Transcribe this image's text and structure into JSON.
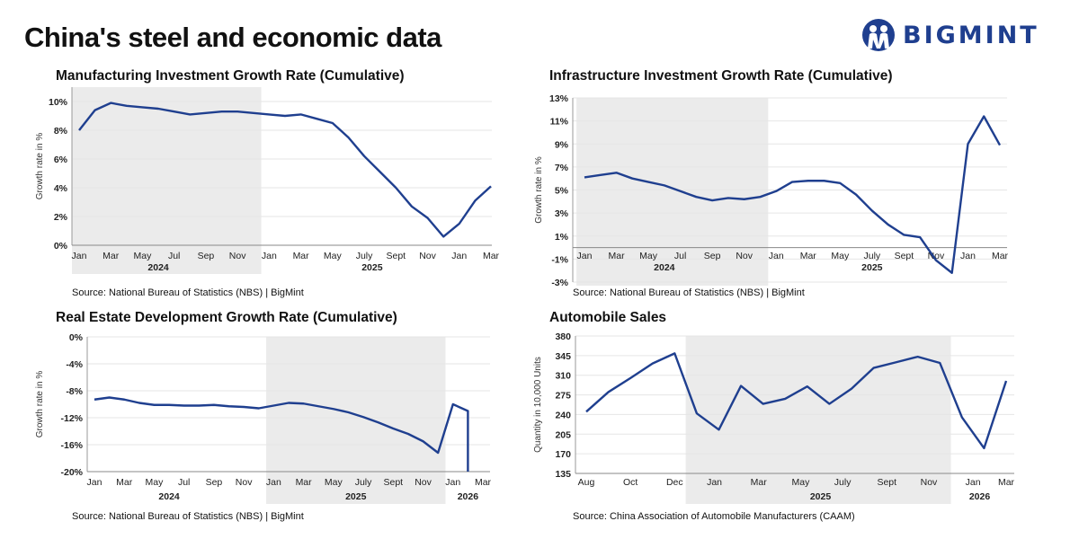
{
  "title": "China's steel and economic data",
  "logo": {
    "text": "BIGMINT",
    "color": "#1f3f8f"
  },
  "colors": {
    "line": "#1f3f8f",
    "shade": "#ebebeb",
    "grid": "#e6e6e6"
  },
  "chart_data": [
    {
      "type": "line",
      "title": "Manufacturing Investment Growth Rate (Cumulative)",
      "ylabel": "Growth rate in %",
      "source": "Source: National Bureau of Statistics (NBS) | BigMint",
      "ylim": [
        0,
        11
      ],
      "yticks": [
        "0%",
        "2%",
        "4%",
        "6%",
        "8%",
        "10%"
      ],
      "ytick_values": [
        0,
        2,
        4,
        6,
        8,
        10
      ],
      "xtick_labels": [
        {
          "i": 0,
          "t": "Jan"
        },
        {
          "i": 2,
          "t": "Mar"
        },
        {
          "i": 4,
          "t": "May"
        },
        {
          "i": 6,
          "t": "Jul"
        },
        {
          "i": 8,
          "t": "Sep"
        },
        {
          "i": 10,
          "t": "Nov"
        },
        {
          "i": 12,
          "t": "Jan"
        },
        {
          "i": 14,
          "t": "Mar"
        },
        {
          "i": 16,
          "t": "May"
        },
        {
          "i": 18,
          "t": "July"
        },
        {
          "i": 20,
          "t": "Sept"
        },
        {
          "i": 22,
          "t": "Nov"
        },
        {
          "i": 24,
          "t": "Jan"
        },
        {
          "i": 26,
          "t": "Mar"
        }
      ],
      "year_labels": [
        {
          "i": 5,
          "t": "2024"
        },
        {
          "i": 18.5,
          "t": "2025"
        }
      ],
      "shaded_range": [
        -0.5,
        11.5
      ],
      "values": [
        8.0,
        9.4,
        9.9,
        9.7,
        9.6,
        9.5,
        9.3,
        9.1,
        9.2,
        9.3,
        9.3,
        9.2,
        9.1,
        9.0,
        9.1,
        8.8,
        8.5,
        7.5,
        6.2,
        5.1,
        4.0,
        2.7,
        1.9,
        0.6,
        1.5,
        3.1,
        4.1
      ],
      "grid": true
    },
    {
      "type": "line",
      "title": "Infrastructure Investment Growth Rate (Cumulative)",
      "ylabel": "Growth rate in %",
      "source": "Source: National Bureau of Statistics (NBS) | BigMint",
      "ylim": [
        -3,
        13
      ],
      "yticks": [
        "-3%",
        "-1%",
        "1%",
        "3%",
        "5%",
        "7%",
        "9%",
        "11%",
        "13%"
      ],
      "ytick_values": [
        -3,
        -1,
        1,
        3,
        5,
        7,
        9,
        11,
        13
      ],
      "xtick_labels": [
        {
          "i": 0,
          "t": "Jan"
        },
        {
          "i": 2,
          "t": "Mar"
        },
        {
          "i": 4,
          "t": "May"
        },
        {
          "i": 6,
          "t": "Jul"
        },
        {
          "i": 8,
          "t": "Sep"
        },
        {
          "i": 10,
          "t": "Nov"
        },
        {
          "i": 12,
          "t": "Jan"
        },
        {
          "i": 14,
          "t": "Mar"
        },
        {
          "i": 16,
          "t": "May"
        },
        {
          "i": 18,
          "t": "July"
        },
        {
          "i": 20,
          "t": "Sept"
        },
        {
          "i": 22,
          "t": "Nov"
        },
        {
          "i": 24,
          "t": "Jan"
        },
        {
          "i": 26,
          "t": "Mar"
        }
      ],
      "year_labels": [
        {
          "i": 5,
          "t": "2024"
        },
        {
          "i": 18,
          "t": "2025"
        }
      ],
      "shaded_range": [
        -0.5,
        11.5
      ],
      "values": [
        6.1,
        6.3,
        6.5,
        6.0,
        5.7,
        5.4,
        4.9,
        4.4,
        4.1,
        4.3,
        4.2,
        4.4,
        4.9,
        5.7,
        5.8,
        5.8,
        5.6,
        4.6,
        3.2,
        2.0,
        1.1,
        0.9,
        -1.1,
        -2.2,
        9.0,
        11.4,
        8.9
      ],
      "grid": true
    },
    {
      "type": "line",
      "title": "Real Estate Development Growth Rate (Cumulative)",
      "ylabel": "Growth rate in %",
      "source": "Source: National Bureau of Statistics (NBS) | BigMint",
      "ylim": [
        -20,
        0
      ],
      "yticks": [
        "-20%",
        "-16%",
        "-12%",
        "-8%",
        "-4%",
        "0%"
      ],
      "ytick_values": [
        -20,
        -16,
        -12,
        -8,
        -4,
        0
      ],
      "xtick_labels": [
        {
          "i": 0,
          "t": "Jan"
        },
        {
          "i": 2,
          "t": "Mar"
        },
        {
          "i": 4,
          "t": "May"
        },
        {
          "i": 6,
          "t": "Jul"
        },
        {
          "i": 8,
          "t": "Sep"
        },
        {
          "i": 10,
          "t": "Nov"
        },
        {
          "i": 12,
          "t": "Jan"
        },
        {
          "i": 14,
          "t": "Mar"
        },
        {
          "i": 16,
          "t": "May"
        },
        {
          "i": 18,
          "t": "July"
        },
        {
          "i": 20,
          "t": "Sept"
        },
        {
          "i": 22,
          "t": "Nov"
        },
        {
          "i": 24,
          "t": "Jan"
        },
        {
          "i": 26,
          "t": "Mar"
        }
      ],
      "year_labels": [
        {
          "i": 5,
          "t": "2024"
        },
        {
          "i": 17.5,
          "t": "2025"
        },
        {
          "i": 25,
          "t": "2026"
        }
      ],
      "shaded_range": [
        11.5,
        23.5
      ],
      "values": [
        -9.3,
        -9.0,
        -9.3,
        -9.8,
        -10.1,
        -10.1,
        -10.2,
        -10.2,
        -10.1,
        -10.3,
        -10.4,
        -10.6,
        -10.2,
        -9.8,
        -9.9,
        -10.3,
        -10.7,
        -11.2,
        -11.9,
        -12.7,
        -13.6,
        -14.4,
        -15.5,
        -17.2,
        -10.0,
        -11.0
      ],
      "drop_to_axis_min_at_end": true,
      "grid": true
    },
    {
      "type": "line",
      "title": "Automobile Sales",
      "ylabel": "Quantity in 10,000 Units",
      "source": "Source: China Association of Automobile Manufacturers (CAAM)",
      "ylim": [
        135,
        380
      ],
      "yticks": [
        "135",
        "170",
        "205",
        "240",
        "275",
        "310",
        "345",
        "380"
      ],
      "ytick_values": [
        135,
        170,
        205,
        240,
        275,
        310,
        345,
        380
      ],
      "xtick_labels": [
        {
          "i": 0,
          "t": "Aug"
        },
        {
          "i": 2,
          "t": "Oct"
        },
        {
          "i": 4,
          "t": "Dec"
        },
        {
          "i": 5.8,
          "t": "Jan"
        },
        {
          "i": 7.8,
          "t": "Mar"
        },
        {
          "i": 9.7,
          "t": "May"
        },
        {
          "i": 11.6,
          "t": "July"
        },
        {
          "i": 13.6,
          "t": "Sept"
        },
        {
          "i": 15.5,
          "t": "Nov"
        },
        {
          "i": 17.5,
          "t": "Jan"
        },
        {
          "i": 19,
          "t": "Mar"
        }
      ],
      "year_labels": [
        {
          "i": 10.6,
          "t": "2025"
        },
        {
          "i": 17.8,
          "t": "2026"
        }
      ],
      "shaded_range": [
        4.5,
        16.5
      ],
      "values": [
        245,
        280,
        305,
        331,
        349,
        242,
        213,
        291,
        259,
        268,
        290,
        259,
        286,
        323,
        333,
        343,
        332,
        235,
        180,
        300
      ],
      "grid": true
    }
  ]
}
